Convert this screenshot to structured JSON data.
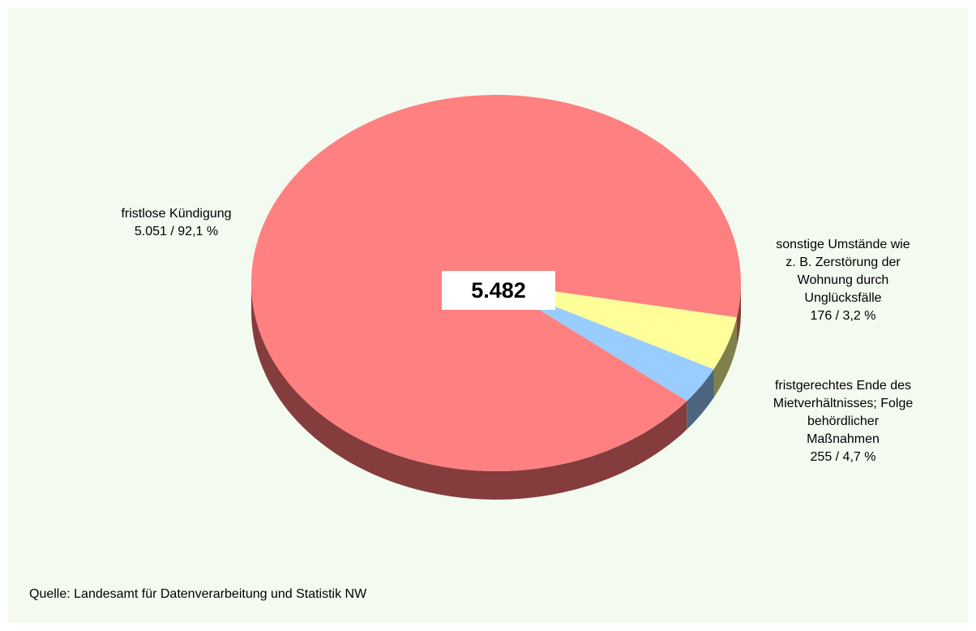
{
  "chart_data": {
    "type": "pie",
    "total": "5.482",
    "slices": [
      {
        "name": "fristlose Kündigung",
        "value": 5051,
        "label_lines": [
          "fristlose Kündigung",
          "5.051 / 92,1 %"
        ],
        "color": "#ff8080",
        "side_color": "#843c3c"
      },
      {
        "name": "sonstige Umstände wie z. B. Zerstörung der Wohnung durch Unglücksfälle",
        "value": 176,
        "label_lines": [
          "sonstige Umstände wie",
          "z. B. Zerstörung der",
          "Wohnung durch",
          "Unglücksfälle",
          "176 / 3,2 %"
        ],
        "color": "#99ccff",
        "side_color": "#4c6680"
      },
      {
        "name": "fristgerechtes Ende des Mietverhältnisses; Folge behördlicher Maßnahmen",
        "value": 255,
        "label_lines": [
          "fristgerechtes Ende des",
          "Mietverhältnisses; Folge",
          "behördlicher",
          "Maßnahmen",
          "255 / 4,7 %"
        ],
        "color": "#ffff99",
        "side_color": "#80804c"
      }
    ],
    "source": "Quelle: Landesamt für Datenverarbeitung und Statistik NW",
    "legend": "none"
  }
}
